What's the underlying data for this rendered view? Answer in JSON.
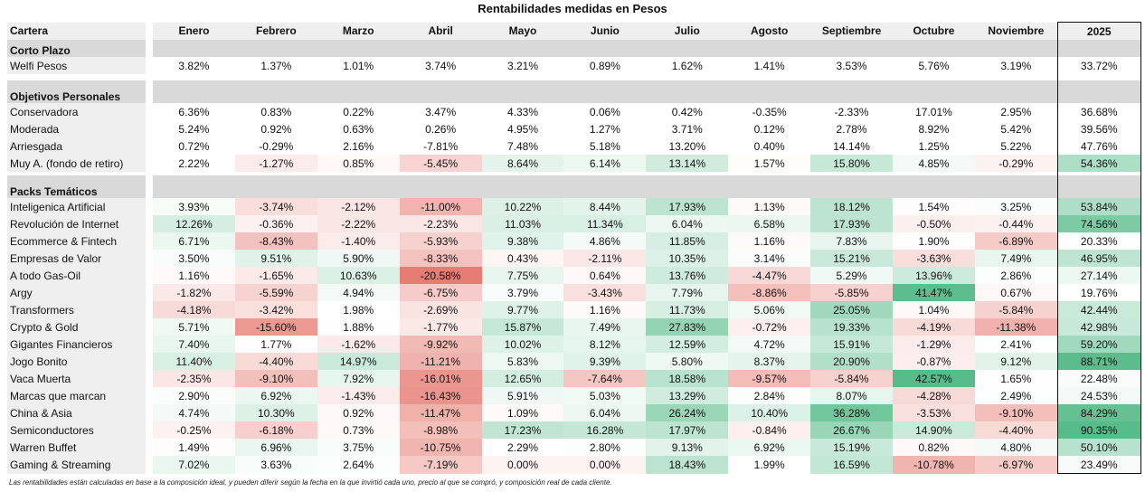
{
  "chart_data": {
    "type": "table",
    "title": "Rentabilidades medidas en Pesos",
    "columns": [
      "Cartera",
      "Enero",
      "Febrero",
      "Marzo",
      "Abril",
      "Mayo",
      "Junio",
      "Julio",
      "Agosto",
      "Septiembre",
      "Octubre",
      "Noviembre",
      "2025"
    ],
    "color_scale": {
      "negative": "#e67c73",
      "midpoint": "#ffffff",
      "positive": "#57bb8a"
    },
    "sections": [
      {
        "name": "Corto Plazo",
        "rows": [
          {
            "label": "Welfi Pesos",
            "heatmap": false,
            "values": [
              "3.82%",
              "1.37%",
              "1.01%",
              "3.74%",
              "3.21%",
              "0.89%",
              "1.62%",
              "1.41%",
              "3.53%",
              "5.76%",
              "3.19%",
              "33.72%"
            ]
          }
        ]
      },
      {
        "name": "Objetivos Personales",
        "rows": [
          {
            "label": "Conservadora",
            "heatmap": false,
            "values": [
              "6.36%",
              "0.83%",
              "0.22%",
              "3.47%",
              "4.33%",
              "0.06%",
              "0.42%",
              "-0.35%",
              "-2.33%",
              "17.01%",
              "2.95%",
              "36.68%"
            ]
          },
          {
            "label": "Moderada",
            "heatmap": false,
            "values": [
              "5.24%",
              "0.92%",
              "0.63%",
              "0.26%",
              "4.95%",
              "1.27%",
              "3.71%",
              "0.12%",
              "2.78%",
              "8.92%",
              "5.42%",
              "39.56%"
            ]
          },
          {
            "label": "Arriesgada",
            "heatmap": false,
            "values": [
              "0.72%",
              "-0.29%",
              "2.16%",
              "-7.81%",
              "7.48%",
              "5.18%",
              "13.20%",
              "0.40%",
              "14.14%",
              "1.25%",
              "5.22%",
              "47.76%"
            ]
          },
          {
            "label": "Muy A. (fondo de retiro)",
            "heatmap": true,
            "values": [
              "2.22%",
              "-1.27%",
              "0.85%",
              "-5.45%",
              "8.64%",
              "6.14%",
              "13.14%",
              "1.57%",
              "15.80%",
              "4.85%",
              "-0.29%",
              "54.36%"
            ]
          }
        ]
      },
      {
        "name": "Packs Temáticos",
        "rows": [
          {
            "label": "Inteligenica Artificial",
            "heatmap": true,
            "values": [
              "3.93%",
              "-3.74%",
              "-2.12%",
              "-11.00%",
              "10.22%",
              "8.44%",
              "17.93%",
              "1.13%",
              "18.12%",
              "1.54%",
              "3.25%",
              "53.84%"
            ]
          },
          {
            "label": "Revolución de Internet",
            "heatmap": true,
            "values": [
              "12.26%",
              "-0.36%",
              "-2.22%",
              "-2.23%",
              "11.03%",
              "11.34%",
              "6.04%",
              "6.58%",
              "17.93%",
              "-0.50%",
              "-0.44%",
              "74.56%"
            ]
          },
          {
            "label": "Ecommerce & Fintech",
            "heatmap": true,
            "values": [
              "6.71%",
              "-8.43%",
              "-1.40%",
              "-5.93%",
              "9.38%",
              "4.86%",
              "11.85%",
              "1.16%",
              "7.83%",
              "1.90%",
              "-6.89%",
              "20.33%"
            ]
          },
          {
            "label": "Empresas de Valor",
            "heatmap": true,
            "values": [
              "3.50%",
              "9.51%",
              "5.90%",
              "-8.33%",
              "0.43%",
              "-2.11%",
              "10.35%",
              "3.14%",
              "15.21%",
              "-3.63%",
              "7.49%",
              "46.95%"
            ]
          },
          {
            "label": "A todo Gas-Oil",
            "heatmap": true,
            "values": [
              "1.16%",
              "-1.65%",
              "10.63%",
              "-20.58%",
              "7.75%",
              "0.64%",
              "13.76%",
              "-4.47%",
              "5.29%",
              "13.96%",
              "2.86%",
              "27.14%"
            ]
          },
          {
            "label": "Argy",
            "heatmap": true,
            "values": [
              "-1.82%",
              "-5.59%",
              "4.94%",
              "-6.75%",
              "3.79%",
              "-3.43%",
              "7.79%",
              "-8.86%",
              "-5.85%",
              "41.47%",
              "0.67%",
              "19.76%"
            ]
          },
          {
            "label": "Transformers",
            "heatmap": true,
            "values": [
              "-4.18%",
              "-3.42%",
              "1.98%",
              "-2.69%",
              "9.77%",
              "1.16%",
              "11.73%",
              "5.06%",
              "25.05%",
              "1.04%",
              "-5.84%",
              "42.44%"
            ]
          },
          {
            "label": "Crypto & Gold",
            "heatmap": true,
            "values": [
              "5.71%",
              "-15.60%",
              "1.88%",
              "-1.77%",
              "15.87%",
              "7.49%",
              "27.83%",
              "-0.72%",
              "19.33%",
              "-4.19%",
              "-11.38%",
              "42.98%"
            ]
          },
          {
            "label": "Gigantes Financieros",
            "heatmap": true,
            "values": [
              "7.40%",
              "1.77%",
              "-1.62%",
              "-9.92%",
              "10.02%",
              "8.12%",
              "12.59%",
              "4.72%",
              "15.91%",
              "-1.29%",
              "2.41%",
              "59.20%"
            ]
          },
          {
            "label": "Jogo Bonito",
            "heatmap": true,
            "values": [
              "11.40%",
              "-4.40%",
              "14.97%",
              "-11.21%",
              "5.83%",
              "9.39%",
              "5.80%",
              "8.37%",
              "20.90%",
              "-0.87%",
              "9.12%",
              "88.71%"
            ]
          },
          {
            "label": "Vaca Muerta",
            "heatmap": true,
            "values": [
              "-2.35%",
              "-9.10%",
              "7.92%",
              "-16.01%",
              "12.65%",
              "-7.64%",
              "18.58%",
              "-9.57%",
              "-5.84%",
              "42.57%",
              "1.65%",
              "22.48%"
            ]
          },
          {
            "label": "Marcas que marcan",
            "heatmap": true,
            "values": [
              "2.90%",
              "6.92%",
              "-1.43%",
              "-16.43%",
              "5.91%",
              "5.03%",
              "13.29%",
              "2.84%",
              "8.07%",
              "-4.28%",
              "2.49%",
              "24.53%"
            ]
          },
          {
            "label": "China & Asia",
            "heatmap": true,
            "values": [
              "4.74%",
              "10.30%",
              "0.92%",
              "-11.47%",
              "1.09%",
              "6.04%",
              "26.24%",
              "10.40%",
              "36.28%",
              "-3.53%",
              "-9.10%",
              "84.29%"
            ]
          },
          {
            "label": "Semiconductores",
            "heatmap": true,
            "values": [
              "-0.25%",
              "-6.18%",
              "0.73%",
              "-8.98%",
              "17.23%",
              "16.28%",
              "17.97%",
              "-0.84%",
              "26.67%",
              "14.90%",
              "-4.40%",
              "90.35%"
            ]
          },
          {
            "label": "Warren Buffet",
            "heatmap": true,
            "values": [
              "1.49%",
              "6.96%",
              "3.75%",
              "-10.75%",
              "2.29%",
              "2.80%",
              "9.13%",
              "6.92%",
              "15.19%",
              "0.82%",
              "4.80%",
              "50.10%"
            ]
          },
          {
            "label": "Gaming & Streaming",
            "heatmap": true,
            "values": [
              "7.02%",
              "3.63%",
              "2.64%",
              "-7.19%",
              "0.00%",
              "0.00%",
              "18.43%",
              "1.99%",
              "16.59%",
              "-10.78%",
              "-6.97%",
              "23.49%"
            ]
          }
        ]
      }
    ],
    "footnote": "Las rentabilidades están calculadas en base a la composición ideal, y pueden diferir según la fecha en la que invirtió cada uno, precio al que se compró, y composición real de cada cliente."
  }
}
